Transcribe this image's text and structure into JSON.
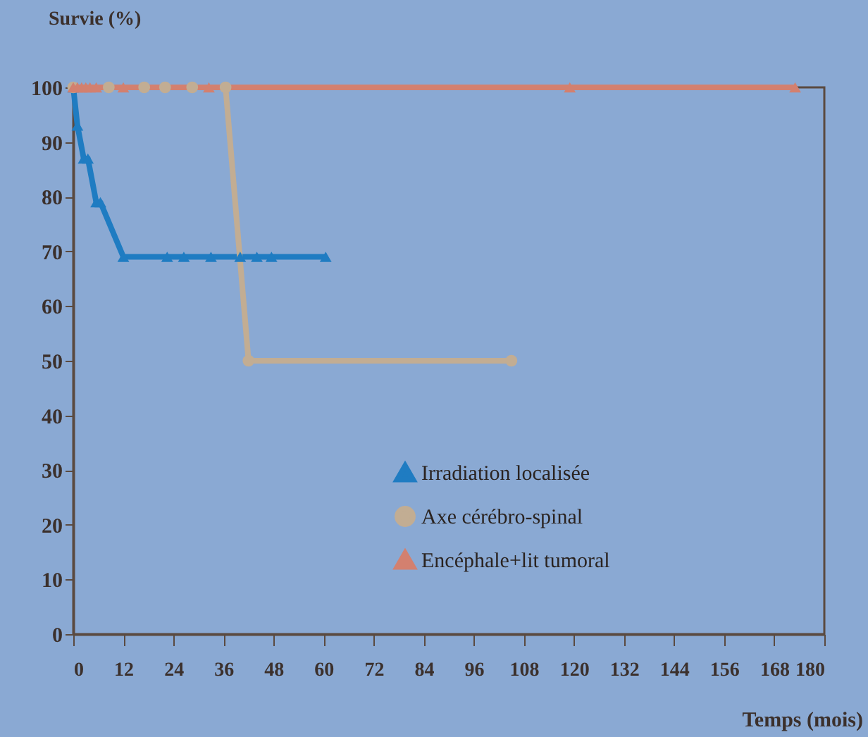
{
  "chart_data": {
    "type": "line",
    "xlabel": "Temps (mois)",
    "ylabel": "Survie (%)",
    "xlim": [
      0,
      180
    ],
    "xticks": [
      0,
      12,
      24,
      36,
      48,
      60,
      72,
      84,
      96,
      108,
      120,
      132,
      144,
      156,
      168,
      180
    ],
    "ylim": [
      0,
      100
    ],
    "yticks": [
      0,
      10,
      20,
      30,
      40,
      50,
      60,
      70,
      80,
      90,
      100
    ],
    "grid": false,
    "legend": "bottom right",
    "line_style": "solid",
    "series": [
      {
        "name": "Irradiation localisée",
        "color": "#1f7cc2",
        "marker": "triangle",
        "x": [
          0,
          1,
          2.5,
          3.5,
          5.5,
          6.5,
          12,
          22.5,
          26.5,
          33,
          40,
          44,
          47.5,
          60.5
        ],
        "values": [
          100,
          93,
          87,
          87,
          79,
          79,
          69,
          69,
          69,
          69,
          69,
          69,
          69,
          69
        ]
      },
      {
        "name": "Axe cérébro-spinal",
        "color": "#c2ad93",
        "marker": "circle",
        "x": [
          0,
          8.5,
          17,
          22,
          28.5,
          36.5,
          42,
          105
        ],
        "values": [
          100,
          100,
          100,
          100,
          100,
          100,
          50,
          50
        ]
      },
      {
        "name": "Encéphale+lit tumoral",
        "color": "#d3806f",
        "marker": "triangle",
        "x": [
          0,
          1,
          2,
          3,
          4,
          5.5,
          12,
          32.5,
          119,
          173
        ],
        "values": [
          100,
          100,
          100,
          100,
          100,
          100,
          100,
          100,
          100,
          100
        ]
      }
    ]
  }
}
